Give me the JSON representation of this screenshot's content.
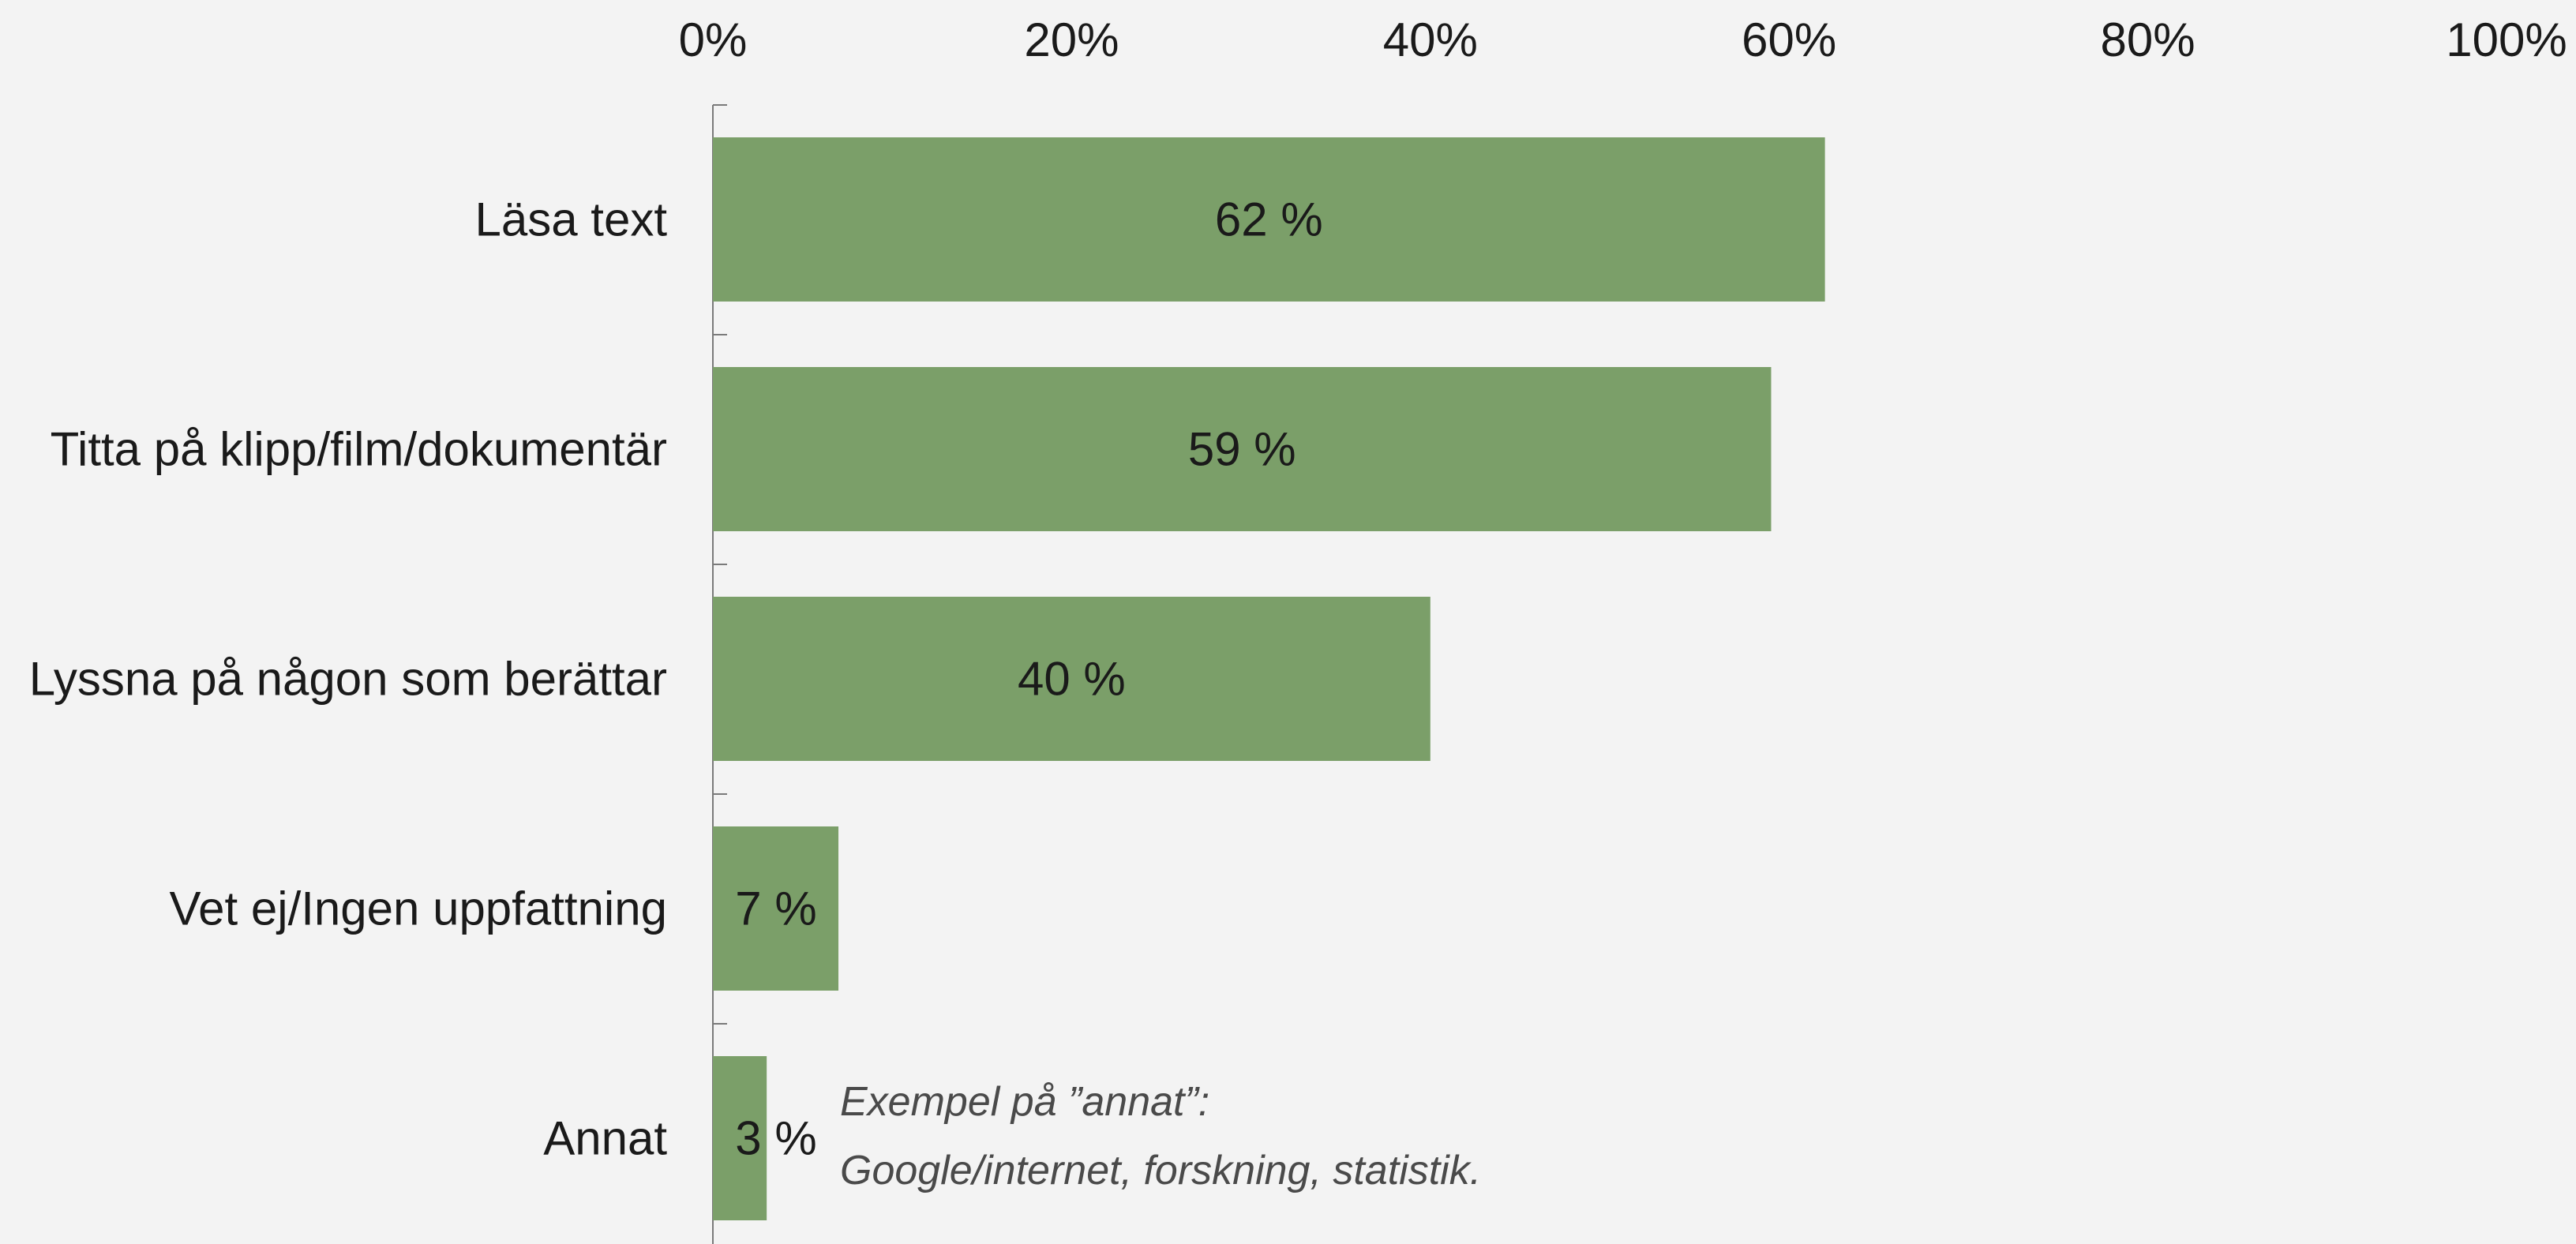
{
  "chart_data": {
    "type": "bar",
    "orientation": "horizontal",
    "categories": [
      "Läsa text",
      "Titta på klipp/film/dokumentär",
      "Lyssna på någon som berättar",
      "Vet ej/Ingen uppfattning",
      "Annat"
    ],
    "values": [
      62,
      59,
      40,
      7,
      3
    ],
    "data_labels": [
      "62 %",
      "59 %",
      "40 %",
      "7 %",
      "3 %"
    ],
    "xlim": [
      0,
      100
    ],
    "x_ticks": [
      0,
      20,
      40,
      60,
      80,
      100
    ],
    "x_tick_labels": [
      "0%",
      "20%",
      "40%",
      "60%",
      "80%",
      "100%"
    ],
    "x_axis_position": "top",
    "grid": false,
    "legend": "none",
    "bar_color": "#7b9f69",
    "background_color": "#f3f3f3",
    "annotation": {
      "line1": "Exempel på ”annat”:",
      "line2": "Google/internet, forskning, statistik."
    }
  }
}
